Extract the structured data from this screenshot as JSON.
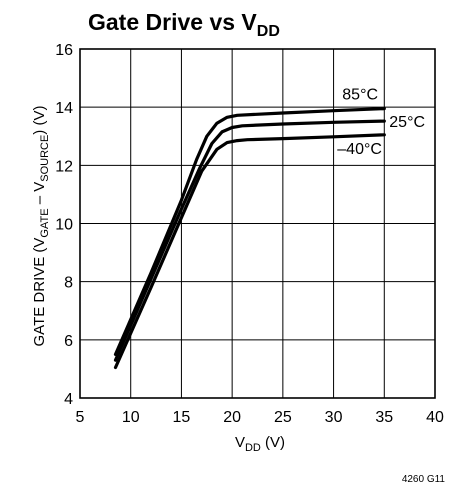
{
  "chart_data": {
    "type": "line",
    "title": {
      "main": "Gate Drive vs V",
      "sub": "DD"
    },
    "xlabel": {
      "main": "V",
      "sub": "DD",
      "rest": " (V)"
    },
    "ylabel": {
      "p1": "GATE DRIVE (V",
      "s1": "GATE",
      "p2": " – V",
      "s2": "SOURCE",
      "p3": ") (V)"
    },
    "xlim": [
      5,
      40
    ],
    "ylim": [
      4,
      16
    ],
    "xticks": [
      5,
      10,
      15,
      20,
      25,
      30,
      35,
      40
    ],
    "yticks": [
      4,
      6,
      8,
      10,
      12,
      14,
      16
    ],
    "grid": true,
    "series": [
      {
        "name": "85°C",
        "x": [
          8.5,
          12,
          15,
          16.5,
          17.5,
          18.5,
          19.5,
          20.5,
          25,
          30,
          35
        ],
        "y": [
          5.5,
          8.3,
          10.8,
          12.2,
          13.0,
          13.45,
          13.65,
          13.72,
          13.8,
          13.88,
          13.95
        ]
      },
      {
        "name": "25°C",
        "x": [
          8.5,
          12,
          15,
          16.8,
          18,
          19,
          20,
          21,
          25,
          30,
          35
        ],
        "y": [
          5.3,
          8.1,
          10.5,
          11.9,
          12.75,
          13.15,
          13.3,
          13.36,
          13.42,
          13.48,
          13.52
        ]
      },
      {
        "name": "–40°C",
        "x": [
          8.5,
          12,
          15,
          17,
          18.5,
          19.5,
          20.5,
          21.5,
          25,
          30,
          35
        ],
        "y": [
          5.05,
          7.8,
          10.2,
          11.8,
          12.55,
          12.78,
          12.85,
          12.88,
          12.92,
          12.98,
          13.05
        ]
      }
    ]
  },
  "footnote": "4260 G11"
}
